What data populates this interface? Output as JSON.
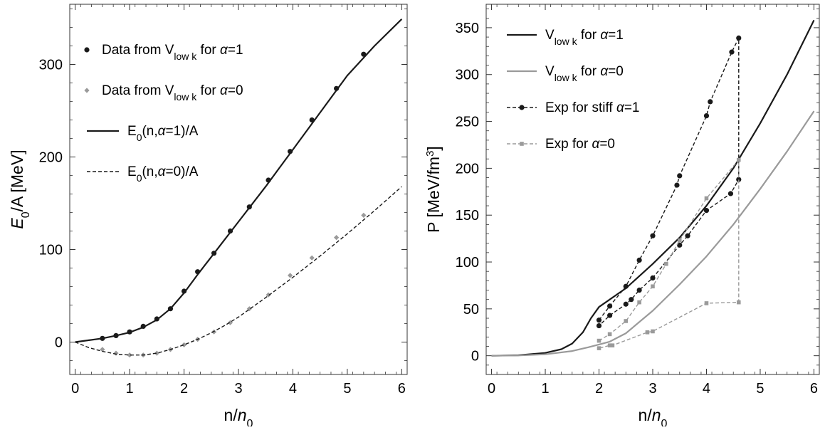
{
  "chart_data": [
    {
      "type": "line",
      "panel": "left",
      "xlabel": {
        "main": "n/",
        "italic": "n",
        "sub": "0"
      },
      "ylabel": {
        "italic": "E",
        "sub": "0",
        "main": "/A [MeV]"
      },
      "xlim": [
        -0.1,
        6.1
      ],
      "ylim": [
        -35,
        365
      ],
      "xticks": [
        0,
        1,
        2,
        3,
        4,
        5,
        6
      ],
      "yticks": [
        0,
        100,
        200,
        300
      ],
      "xtick_labels": [
        "0",
        "1",
        "2",
        "3",
        "4",
        "5",
        "6"
      ],
      "ytick_labels": [
        "0",
        "100",
        "200",
        "300"
      ],
      "grid": false,
      "legend_position": "top-left",
      "legend": [
        {
          "style": "marker-black",
          "pre": "Data from V",
          "sub": "low k",
          "post": " for ",
          "greek": "α",
          "eq": "=1"
        },
        {
          "style": "marker-gray",
          "pre": "Data from V",
          "sub": "low k",
          "post": " for ",
          "greek": "α",
          "eq": "=0"
        },
        {
          "style": "solid-black",
          "pre": "E",
          "sub": "0",
          "post": "(n,",
          "greek": "α",
          "eq": "=1)/A"
        },
        {
          "style": "dashed-black",
          "pre": "E",
          "sub": "0",
          "post": "(n,",
          "greek": "α",
          "eq": "=0)/A"
        }
      ],
      "series": [
        {
          "style": "marker-black",
          "points": [
            [
              0.5,
              4
            ],
            [
              0.75,
              7
            ],
            [
              1.0,
              11
            ],
            [
              1.25,
              17
            ],
            [
              1.5,
              25
            ],
            [
              1.75,
              36
            ],
            [
              2.0,
              55
            ],
            [
              2.25,
              76
            ],
            [
              2.55,
              96
            ],
            [
              2.85,
              120
            ],
            [
              3.2,
              146
            ],
            [
              3.55,
              175
            ],
            [
              3.95,
              206
            ],
            [
              4.35,
              240
            ],
            [
              4.8,
              274
            ],
            [
              5.3,
              311
            ]
          ]
        },
        {
          "style": "marker-gray",
          "points": [
            [
              0.5,
              -8
            ],
            [
              0.75,
              -12
            ],
            [
              1.0,
              -14
            ],
            [
              1.25,
              -14
            ],
            [
              1.5,
              -12
            ],
            [
              1.75,
              -8
            ],
            [
              2.0,
              -3
            ],
            [
              2.25,
              3
            ],
            [
              2.55,
              11
            ],
            [
              2.85,
              21
            ],
            [
              3.2,
              36
            ],
            [
              3.55,
              51
            ],
            [
              3.95,
              72
            ],
            [
              4.35,
              91
            ],
            [
              4.8,
              113
            ],
            [
              5.3,
              137
            ]
          ]
        },
        {
          "style": "solid-black",
          "points": [
            [
              0,
              0
            ],
            [
              0.25,
              2
            ],
            [
              0.5,
              4
            ],
            [
              0.75,
              7
            ],
            [
              1.0,
              10.5
            ],
            [
              1.25,
              16
            ],
            [
              1.5,
              24
            ],
            [
              1.75,
              36
            ],
            [
              2.0,
              53
            ],
            [
              2.25,
              73
            ],
            [
              2.5,
              92
            ],
            [
              2.75,
              111
            ],
            [
              3.0,
              130
            ],
            [
              3.25,
              149
            ],
            [
              3.5,
              168
            ],
            [
              3.75,
              188
            ],
            [
              4.0,
              208
            ],
            [
              4.5,
              248
            ],
            [
              5.0,
              288
            ],
            [
              5.5,
              320
            ],
            [
              6.0,
              349
            ]
          ]
        },
        {
          "style": "dashed-black",
          "points": [
            [
              0,
              0
            ],
            [
              0.25,
              -6
            ],
            [
              0.5,
              -10
            ],
            [
              0.75,
              -13
            ],
            [
              1.0,
              -14
            ],
            [
              1.25,
              -14
            ],
            [
              1.5,
              -12
            ],
            [
              1.75,
              -8
            ],
            [
              2.0,
              -3
            ],
            [
              2.25,
              3
            ],
            [
              2.5,
              10
            ],
            [
              2.75,
              18
            ],
            [
              3.0,
              27
            ],
            [
              3.5,
              48
            ],
            [
              4.0,
              70
            ],
            [
              4.5,
              93
            ],
            [
              5.0,
              117
            ],
            [
              5.5,
              142
            ],
            [
              6.0,
              168
            ]
          ]
        }
      ]
    },
    {
      "type": "line",
      "panel": "right",
      "xlabel": {
        "main": "n/",
        "italic": "n",
        "sub": "0"
      },
      "ylabel": {
        "main": "P [MeV/fm",
        "sup": "3",
        "end": "]"
      },
      "xlim": [
        -0.1,
        6.1
      ],
      "ylim": [
        -20,
        375
      ],
      "xticks": [
        0,
        1,
        2,
        3,
        4,
        5,
        6
      ],
      "yticks": [
        0,
        50,
        100,
        150,
        200,
        250,
        300,
        350
      ],
      "xtick_labels": [
        "0",
        "1",
        "2",
        "3",
        "4",
        "5",
        "6"
      ],
      "ytick_labels": [
        "0",
        "50",
        "100",
        "150",
        "200",
        "250",
        "300",
        "350"
      ],
      "grid": false,
      "legend_position": "top-left",
      "legend": [
        {
          "style": "solid-black",
          "pre": "V",
          "sub": "low k",
          "post": " for ",
          "greek": "α",
          "eq": "=1"
        },
        {
          "style": "solid-gray",
          "pre": "V",
          "sub": "low k",
          "post": " for ",
          "greek": "α",
          "eq": "=0"
        },
        {
          "style": "dashed-black-dot",
          "pre": "Exp for stiff ",
          "sub": "",
          "post": "",
          "greek": "α",
          "eq": "=1"
        },
        {
          "style": "dashed-gray-square",
          "pre": "Exp for ",
          "sub": "",
          "post": "",
          "greek": "α",
          "eq": "=0"
        }
      ],
      "series": [
        {
          "style": "solid-black",
          "points": [
            [
              0,
              0
            ],
            [
              0.5,
              0.5
            ],
            [
              1.0,
              3
            ],
            [
              1.3,
              7
            ],
            [
              1.5,
              13
            ],
            [
              1.7,
              25
            ],
            [
              1.85,
              40
            ],
            [
              2.0,
              52
            ],
            [
              2.2,
              60
            ],
            [
              2.5,
              72
            ],
            [
              3.0,
              98
            ],
            [
              3.5,
              126
            ],
            [
              4.0,
              160
            ],
            [
              4.5,
              200
            ],
            [
              5.0,
              248
            ],
            [
              5.5,
              300
            ],
            [
              6.0,
              358
            ]
          ]
        },
        {
          "style": "solid-gray",
          "points": [
            [
              0,
              0
            ],
            [
              0.5,
              0.3
            ],
            [
              1.0,
              1.5
            ],
            [
              1.5,
              5
            ],
            [
              1.8,
              9
            ],
            [
              2.0,
              12
            ],
            [
              2.2,
              15
            ],
            [
              2.5,
              24
            ],
            [
              3.0,
              48
            ],
            [
              3.5,
              76
            ],
            [
              4.0,
              106
            ],
            [
              4.5,
              140
            ],
            [
              5.0,
              178
            ],
            [
              5.5,
              218
            ],
            [
              6.0,
              261
            ]
          ]
        },
        {
          "style": "dashed-black-dot",
          "points": [
            [
              2.0,
              38
            ],
            [
              2.2,
              53
            ],
            [
              2.5,
              74
            ],
            [
              2.75,
              102
            ],
            [
              3.0,
              128
            ],
            [
              3.45,
              182
            ],
            [
              3.5,
              192
            ],
            [
              4.0,
              256
            ],
            [
              4.07,
              271
            ],
            [
              4.47,
              324
            ],
            [
              4.6,
              339
            ],
            [
              4.6,
              188
            ],
            [
              4.45,
              173
            ],
            [
              4.0,
              155
            ],
            [
              3.65,
              128
            ],
            [
              3.5,
              118
            ],
            [
              3.0,
              83
            ],
            [
              2.75,
              70
            ],
            [
              2.6,
              60
            ],
            [
              2.5,
              55
            ],
            [
              2.2,
              43
            ],
            [
              2.0,
              32
            ]
          ]
        },
        {
          "style": "dashed-gray-square",
          "points": [
            [
              2.0,
              16
            ],
            [
              2.2,
              23
            ],
            [
              2.5,
              37
            ],
            [
              2.75,
              57
            ],
            [
              3.0,
              74
            ],
            [
              3.25,
              98
            ],
            [
              3.5,
              123
            ],
            [
              4.0,
              168
            ],
            [
              4.6,
              209
            ],
            [
              4.6,
              57
            ],
            [
              4.0,
              56
            ],
            [
              3.0,
              26
            ],
            [
              2.9,
              25
            ],
            [
              2.25,
              11
            ],
            [
              2.2,
              11
            ],
            [
              2.0,
              8
            ]
          ]
        }
      ]
    }
  ],
  "colors": {
    "black": "#1a1a1a",
    "gray": "#9a9a9a"
  }
}
